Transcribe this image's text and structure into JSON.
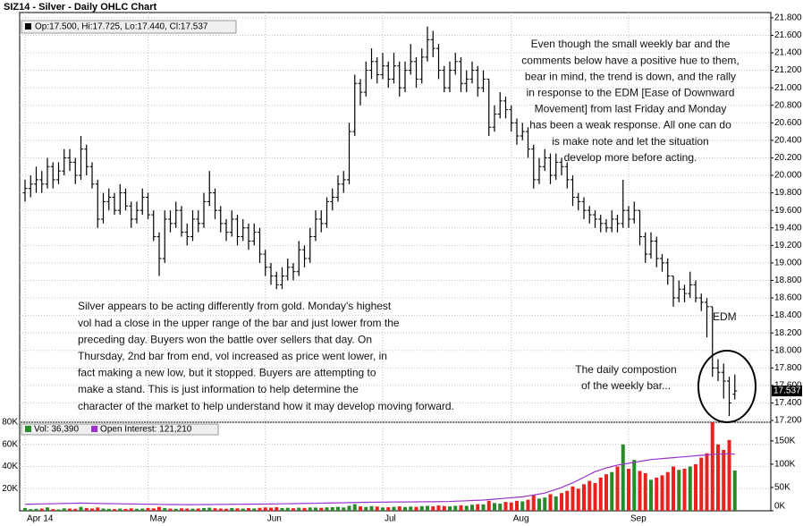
{
  "chart_data": [
    {
      "type": "ohlc",
      "title": "SIZ14 - Silver - Daily OHLC Chart",
      "legend": "Op:17.500, Hi:17.725, Lo:17.440, Cl:17.537",
      "color": "#000000",
      "last_label_color": "#000000",
      "ylim": [
        17.18,
        21.86
      ],
      "yticks": [
        {
          "value": 17.2,
          "label": "17.200"
        },
        {
          "value": 17.4,
          "label": "17.400"
        },
        {
          "value": 17.6,
          "label": "17.600"
        },
        {
          "value": 17.8,
          "label": "17.800"
        },
        {
          "value": 18.0,
          "label": "18.000"
        },
        {
          "value": 18.2,
          "label": "18.200"
        },
        {
          "value": 18.4,
          "label": "18.400"
        },
        {
          "value": 18.6,
          "label": "18.600"
        },
        {
          "value": 18.8,
          "label": "18.800"
        },
        {
          "value": 19.0,
          "label": "19.000"
        },
        {
          "value": 19.2,
          "label": "19.200"
        },
        {
          "value": 19.4,
          "label": "19.400"
        },
        {
          "value": 19.6,
          "label": "19.600"
        },
        {
          "value": 19.8,
          "label": "19.800"
        },
        {
          "value": 20.0,
          "label": "20.000"
        },
        {
          "value": 20.2,
          "label": "20.200"
        },
        {
          "value": 20.4,
          "label": "20.400"
        },
        {
          "value": 20.6,
          "label": "20.600"
        },
        {
          "value": 20.8,
          "label": "20.800"
        },
        {
          "value": 21.0,
          "label": "21.000"
        },
        {
          "value": 21.2,
          "label": "21.200"
        },
        {
          "value": 21.4,
          "label": "21.400"
        },
        {
          "value": 21.6,
          "label": "21.600"
        },
        {
          "value": 21.8,
          "label": "21.800"
        }
      ],
      "grid": true,
      "open": [
        19.8,
        19.85,
        19.9,
        19.95,
        19.9,
        20.1,
        19.95,
        20.05,
        20.2,
        20.15,
        20.0,
        20.3,
        20.1,
        19.9,
        19.5,
        19.7,
        19.75,
        19.6,
        19.8,
        19.65,
        19.5,
        19.6,
        19.75,
        19.55,
        19.3,
        19.05,
        19.5,
        19.45,
        19.6,
        19.35,
        19.3,
        19.5,
        19.45,
        19.7,
        19.8,
        19.6,
        19.45,
        19.35,
        19.5,
        19.3,
        19.4,
        19.25,
        19.35,
        19.1,
        18.95,
        18.85,
        18.75,
        18.85,
        18.95,
        18.9,
        19.15,
        19.05,
        19.3,
        19.5,
        19.45,
        19.7,
        19.75,
        19.9,
        19.95,
        20.5,
        21.05,
        20.95,
        21.2,
        21.3,
        21.15,
        21.25,
        21.1,
        21.25,
        21.0,
        21.2,
        21.3,
        21.1,
        21.35,
        21.55,
        21.45,
        21.2,
        21.0,
        21.2,
        21.3,
        21.05,
        21.1,
        21.2,
        21.0,
        21.1,
        20.55,
        20.7,
        20.85,
        20.75,
        20.6,
        20.45,
        20.5,
        20.3,
        19.95,
        20.1,
        20.2,
        20.0,
        20.15,
        20.1,
        19.95,
        19.75,
        19.7,
        19.6,
        19.55,
        19.5,
        19.45,
        19.4,
        19.5,
        19.45,
        19.6,
        19.5,
        19.6,
        19.3,
        19.1,
        19.25,
        19.05,
        19.0,
        18.85,
        18.6,
        18.7,
        18.65,
        18.75,
        18.6,
        18.55,
        18.5,
        17.8,
        17.75,
        17.65,
        17.5
      ],
      "high": [
        19.95,
        20.0,
        20.1,
        20.05,
        20.2,
        20.15,
        20.15,
        20.3,
        20.3,
        20.2,
        20.45,
        20.35,
        20.15,
        19.95,
        19.8,
        19.85,
        19.8,
        19.9,
        19.85,
        19.7,
        19.7,
        19.85,
        19.8,
        19.6,
        19.35,
        19.6,
        19.6,
        19.7,
        19.65,
        19.45,
        19.6,
        19.6,
        19.8,
        20.05,
        19.85,
        19.65,
        19.5,
        19.6,
        19.55,
        19.5,
        19.45,
        19.45,
        19.4,
        19.15,
        19.0,
        18.9,
        18.95,
        19.05,
        19.0,
        19.25,
        19.2,
        19.4,
        19.6,
        19.6,
        19.75,
        19.85,
        20.0,
        20.05,
        20.6,
        21.15,
        21.1,
        21.3,
        21.45,
        21.35,
        21.4,
        21.3,
        21.4,
        21.3,
        21.3,
        21.5,
        21.35,
        21.45,
        21.7,
        21.65,
        21.5,
        21.25,
        21.3,
        21.4,
        21.35,
        21.2,
        21.3,
        21.25,
        21.2,
        21.1,
        20.8,
        20.95,
        20.9,
        20.8,
        20.65,
        20.6,
        20.55,
        20.35,
        20.2,
        20.3,
        20.25,
        20.25,
        20.2,
        20.15,
        20.0,
        19.8,
        19.75,
        19.65,
        19.6,
        19.55,
        19.5,
        19.6,
        19.55,
        19.95,
        19.65,
        19.7,
        19.6,
        19.35,
        19.35,
        19.3,
        19.1,
        19.05,
        18.85,
        18.8,
        18.75,
        18.9,
        18.8,
        18.65,
        18.6,
        18.5,
        17.9,
        17.85,
        17.7,
        17.725
      ],
      "low": [
        19.7,
        19.75,
        19.8,
        19.8,
        19.85,
        19.85,
        19.9,
        20.0,
        20.05,
        19.9,
        19.95,
        20.0,
        19.85,
        19.4,
        19.45,
        19.6,
        19.55,
        19.55,
        19.6,
        19.4,
        19.45,
        19.55,
        19.5,
        19.25,
        18.85,
        19.0,
        19.35,
        19.4,
        19.3,
        19.2,
        19.25,
        19.35,
        19.4,
        19.65,
        19.5,
        19.35,
        19.25,
        19.3,
        19.2,
        19.25,
        19.15,
        19.2,
        19.0,
        18.85,
        18.75,
        18.7,
        18.7,
        18.8,
        18.8,
        18.85,
        18.95,
        19.0,
        19.25,
        19.35,
        19.4,
        19.6,
        19.7,
        19.8,
        19.9,
        20.45,
        20.8,
        20.9,
        21.1,
        21.05,
        21.1,
        21.0,
        21.05,
        20.9,
        20.95,
        21.15,
        21.0,
        21.05,
        21.3,
        21.35,
        21.1,
        20.95,
        20.95,
        21.15,
        20.95,
        20.95,
        21.05,
        20.9,
        20.95,
        20.45,
        20.5,
        20.65,
        20.65,
        20.5,
        20.35,
        20.4,
        20.2,
        19.85,
        19.9,
        20.05,
        19.9,
        19.95,
        20.0,
        19.85,
        19.65,
        19.6,
        19.5,
        19.45,
        19.4,
        19.35,
        19.35,
        19.35,
        19.35,
        19.4,
        19.4,
        19.45,
        19.2,
        19.0,
        19.05,
        18.95,
        18.9,
        18.75,
        18.5,
        18.55,
        18.55,
        18.6,
        18.55,
        18.45,
        18.15,
        17.7,
        17.65,
        17.45,
        17.25,
        17.44
      ],
      "close": [
        19.85,
        19.9,
        19.95,
        19.9,
        20.1,
        19.95,
        20.05,
        20.2,
        20.15,
        20.0,
        20.3,
        20.1,
        19.9,
        19.5,
        19.7,
        19.75,
        19.6,
        19.8,
        19.65,
        19.5,
        19.6,
        19.75,
        19.55,
        19.3,
        19.05,
        19.5,
        19.45,
        19.6,
        19.35,
        19.3,
        19.5,
        19.45,
        19.7,
        19.8,
        19.6,
        19.45,
        19.35,
        19.5,
        19.3,
        19.4,
        19.25,
        19.35,
        19.1,
        18.95,
        18.85,
        18.75,
        18.85,
        18.95,
        18.9,
        19.15,
        19.05,
        19.3,
        19.5,
        19.45,
        19.7,
        19.75,
        19.9,
        19.95,
        20.5,
        21.05,
        20.95,
        21.2,
        21.3,
        21.15,
        21.25,
        21.1,
        21.25,
        21.0,
        21.2,
        21.3,
        21.1,
        21.35,
        21.55,
        21.45,
        21.2,
        21.0,
        21.2,
        21.3,
        21.05,
        21.1,
        21.2,
        21.0,
        21.1,
        20.55,
        20.7,
        20.85,
        20.75,
        20.6,
        20.45,
        20.5,
        20.3,
        19.95,
        20.1,
        20.2,
        20.0,
        20.15,
        20.1,
        19.95,
        19.75,
        19.7,
        19.6,
        19.55,
        19.5,
        19.45,
        19.4,
        19.5,
        19.45,
        19.6,
        19.5,
        19.6,
        19.3,
        19.1,
        19.25,
        19.05,
        19.0,
        18.85,
        18.6,
        18.7,
        18.65,
        18.75,
        18.6,
        18.55,
        18.5,
        17.8,
        17.75,
        17.65,
        17.4,
        17.537
      ],
      "annotations": [
        {
          "lines": [
            "Even though the small weekly bar and the",
            "comments below have a positive hue to them,",
            "bear in mind, the trend is down, and the rally",
            "in response to the EDM [Ease of Downward",
            "Movement] from last Friday and Monday",
            "has been a weak response.  All one can do",
            "is make note and let the situation",
            "develop more before acting."
          ]
        },
        {
          "lines": [
            "Silver appears to be acting differently from gold.  Monday's highest",
            "vol had a close in the upper range of the bar and just lower from the",
            "preceding day.  Buyers won the battle over sellers that day.  On",
            "Thursday, 2nd bar from end, vol increased as price went lower, in",
            "fact making a new low, but it stopped.  Buyers are attempting to",
            "make a stand.  This is just information to help determine the",
            "character of the market to help understand how it may develop moving forward."
          ]
        },
        {
          "lines": [
            "EDM"
          ]
        },
        {
          "lines": [
            "The daily compostion",
            "of the weekly bar..."
          ]
        }
      ]
    },
    {
      "type": "bar",
      "categories": [
        "Apr 14",
        null,
        null,
        null,
        null,
        null,
        null,
        null,
        null,
        null,
        null,
        null,
        null,
        null,
        null,
        null,
        null,
        null,
        null,
        null,
        null,
        null,
        "May",
        null,
        null,
        null,
        null,
        null,
        null,
        null,
        null,
        null,
        null,
        null,
        null,
        null,
        null,
        null,
        null,
        null,
        null,
        null,
        null,
        "Jun",
        null,
        null,
        null,
        null,
        null,
        null,
        null,
        null,
        null,
        null,
        null,
        null,
        null,
        null,
        null,
        null,
        null,
        null,
        null,
        null,
        "Jul",
        null,
        null,
        null,
        null,
        null,
        null,
        null,
        null,
        null,
        null,
        null,
        null,
        null,
        null,
        null,
        null,
        null,
        null,
        null,
        null,
        null,
        null,
        "Aug",
        null,
        null,
        null,
        null,
        null,
        null,
        null,
        null,
        null,
        null,
        null,
        null,
        null,
        null,
        null,
        null,
        null,
        null,
        null,
        null,
        "Sep",
        null,
        null,
        null,
        null,
        null,
        null,
        null,
        null,
        null,
        null,
        null,
        null,
        null,
        null,
        null,
        null,
        null,
        null,
        null
      ],
      "series": [
        {
          "name": "Vol: 36,390",
          "color": "#2a8a2a",
          "down_color": "#e8231f",
          "values": [
            2500,
            1500,
            1800,
            2000,
            3000,
            1500,
            1200,
            2200,
            2000,
            1800,
            3500,
            2500,
            2000,
            3000,
            2000,
            1800,
            1500,
            2000,
            1700,
            2200,
            1800,
            2000,
            2500,
            2200,
            3500,
            2500,
            2000,
            1800,
            2200,
            2000,
            1900,
            2100,
            2500,
            2800,
            2300,
            2000,
            1800,
            2500,
            2200,
            2000,
            2400,
            2100,
            2600,
            3000,
            2800,
            3200,
            2500,
            2700,
            2300,
            2800,
            2600,
            3000,
            2900,
            2700,
            3100,
            3300,
            3500,
            3000,
            4500,
            6000,
            4000,
            3500,
            4200,
            3800,
            3000,
            3200,
            3600,
            4000,
            3400,
            3800,
            3500,
            4200,
            4500,
            4000,
            4800,
            4300,
            4000,
            4500,
            5000,
            4500,
            5500,
            6000,
            5800,
            9000,
            7000,
            6500,
            8000,
            7500,
            9000,
            8500,
            10000,
            14000,
            11000,
            12000,
            15000,
            13000,
            16000,
            18000,
            22000,
            20000,
            24000,
            27000,
            25000,
            30000,
            33000,
            35000,
            40000,
            60000,
            38000,
            46000,
            36000,
            34000,
            28000,
            30000,
            32000,
            35000,
            40000,
            37000,
            38000,
            40000,
            42000,
            48000,
            52000,
            80000,
            60000,
            55000,
            64000,
            36390
          ]
        },
        {
          "name": "Open Interest: 121,210",
          "color": "#9933cc",
          "axis": "y2",
          "values": [
            14000,
            14200,
            14500,
            14800,
            15000,
            15200,
            15500,
            15800,
            16000,
            16200,
            16500,
            16300,
            16000,
            15800,
            15500,
            15300,
            15200,
            15000,
            14800,
            14600,
            14500,
            14300,
            14200,
            14000,
            13800,
            13600,
            13500,
            13400,
            13300,
            13200,
            13200,
            13300,
            13400,
            13500,
            13600,
            13700,
            13800,
            13900,
            14000,
            14100,
            14200,
            14300,
            14400,
            14500,
            14600,
            14800,
            15000,
            15200,
            15400,
            15600,
            15800,
            16000,
            16200,
            16400,
            16600,
            16800,
            17000,
            17200,
            17500,
            17800,
            18000,
            18200,
            18400,
            18500,
            18600,
            18700,
            18800,
            18900,
            19000,
            19100,
            19200,
            19300,
            19400,
            19500,
            19600,
            19800,
            20000,
            20500,
            21000,
            21500,
            22000,
            22500,
            23000,
            24000,
            25000,
            26000,
            27000,
            28000,
            29000,
            30000,
            32000,
            34000,
            36000,
            38000,
            42000,
            46000,
            50000,
            55000,
            60000,
            66000,
            72000,
            78000,
            84000,
            88000,
            92000,
            95000,
            98000,
            100000,
            102000,
            104000,
            106000,
            108000,
            110000,
            111000,
            112000,
            113000,
            114000,
            115000,
            116000,
            117000,
            118000,
            119000,
            120000,
            121000,
            121500,
            122000,
            122500,
            121210
          ]
        }
      ],
      "ylim": [
        0,
        80000
      ],
      "yticks": [
        {
          "value": 20000,
          "label": "20K"
        },
        {
          "value": 40000,
          "label": "40K"
        },
        {
          "value": 60000,
          "label": "60K"
        },
        {
          "value": 80000,
          "label": "80K"
        }
      ],
      "y2lim": [
        0,
        190000
      ],
      "y2ticks": [
        {
          "value": 0,
          "label": "0K"
        },
        {
          "value": 50000,
          "label": "50K"
        },
        {
          "value": 100000,
          "label": "100K"
        },
        {
          "value": 150000,
          "label": "150K"
        }
      ],
      "grid": true
    }
  ]
}
